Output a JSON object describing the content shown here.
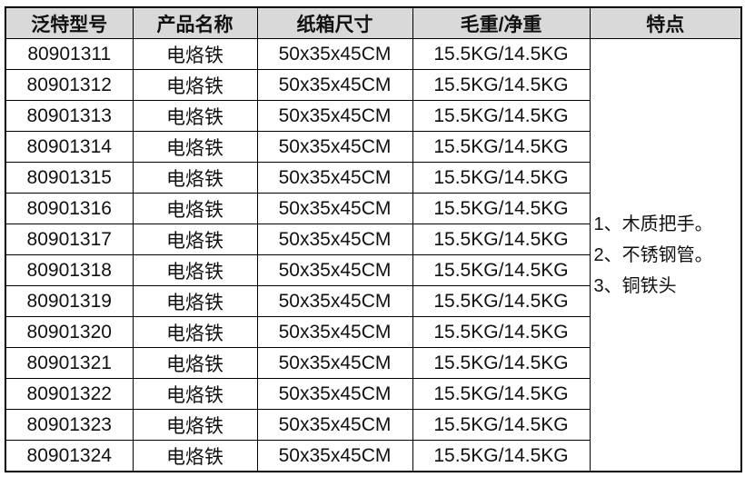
{
  "table": {
    "headers": [
      "泛特型号",
      "产品名称",
      "纸箱尺寸",
      "毛重/净重",
      "特点"
    ],
    "rows": [
      [
        "80901311",
        "电烙铁",
        "50x35x45CM",
        "15.5KG/14.5KG"
      ],
      [
        "80901312",
        "电烙铁",
        "50x35x45CM",
        "15.5KG/14.5KG"
      ],
      [
        "80901313",
        "电烙铁",
        "50x35x45CM",
        "15.5KG/14.5KG"
      ],
      [
        "80901314",
        "电烙铁",
        "50x35x45CM",
        "15.5KG/14.5KG"
      ],
      [
        "80901315",
        "电烙铁",
        "50x35x45CM",
        "15.5KG/14.5KG"
      ],
      [
        "80901316",
        "电烙铁",
        "50x35x45CM",
        "15.5KG/14.5KG"
      ],
      [
        "80901317",
        "电烙铁",
        "50x35x45CM",
        "15.5KG/14.5KG"
      ],
      [
        "80901318",
        "电烙铁",
        "50x35x45CM",
        "15.5KG/14.5KG"
      ],
      [
        "80901319",
        "电烙铁",
        "50x35x45CM",
        "15.5KG/14.5KG"
      ],
      [
        "80901320",
        "电烙铁",
        "50x35x45CM",
        "15.5KG/14.5KG"
      ],
      [
        "80901321",
        "电烙铁",
        "50x35x45CM",
        "15.5KG/14.5KG"
      ],
      [
        "80901322",
        "电烙铁",
        "50x35x45CM",
        "15.5KG/14.5KG"
      ],
      [
        "80901323",
        "电烙铁",
        "50x35x45CM",
        "15.5KG/14.5KG"
      ],
      [
        "80901324",
        "电烙铁",
        "50x35x45CM",
        "15.5KG/14.5KG"
      ]
    ],
    "features": [
      "1、木质把手。",
      "2、不锈钢管。",
      "3、铜铁头"
    ],
    "header_bg": "#d9d9d9"
  }
}
